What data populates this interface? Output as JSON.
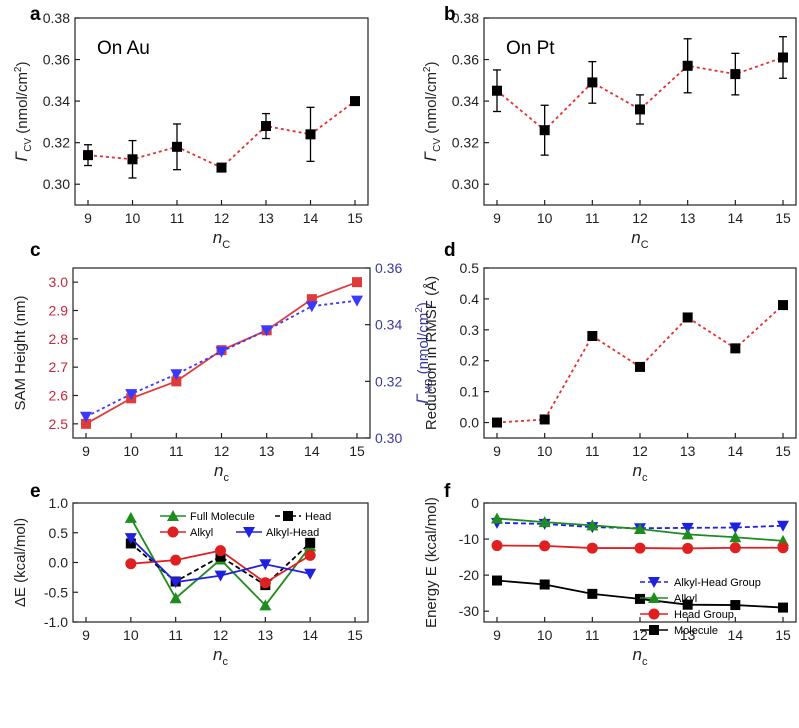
{
  "chart_data": [
    {
      "id": "a",
      "type": "scatter",
      "letter": "a",
      "annotation": "On Au",
      "xlabel_main": "n",
      "xlabel_sub": "C",
      "ylabel_main": "Γ",
      "ylabel_sub": "CV",
      "ylabel_unit": "(nmol/cm",
      "ylabel_sup": "2",
      "ylabel_close": ")",
      "xlim": [
        9,
        15
      ],
      "ylim": [
        0.29,
        0.38
      ],
      "xticks": [
        9,
        10,
        11,
        12,
        13,
        14,
        15
      ],
      "yticks": [
        0.3,
        0.32,
        0.34,
        0.36,
        0.38
      ],
      "ytick_labels": [
        "0.30",
        "0.32",
        "0.34",
        "0.36",
        "0.38"
      ],
      "series": [
        {
          "x": [
            9,
            10,
            11,
            12,
            13,
            14,
            15
          ],
          "y": [
            0.314,
            0.312,
            0.318,
            0.308,
            0.328,
            0.324,
            0.34
          ],
          "yerr": [
            0.005,
            0.009,
            0.011,
            0.0015,
            0.006,
            0.013,
            0.002
          ],
          "color": "#000000",
          "line_color": "#e63030",
          "line": "dotted",
          "marker": "square"
        }
      ]
    },
    {
      "id": "b",
      "type": "scatter",
      "letter": "b",
      "annotation": "On Pt",
      "xlabel_main": "n",
      "xlabel_sub": "C",
      "ylabel_main": "Γ",
      "ylabel_sub": "CV",
      "ylabel_unit": "(nmol/cm",
      "ylabel_sup": "2",
      "ylabel_close": ")",
      "xlim": [
        9,
        15
      ],
      "ylim": [
        0.29,
        0.38
      ],
      "xticks": [
        9,
        10,
        11,
        12,
        13,
        14,
        15
      ],
      "yticks": [
        0.3,
        0.32,
        0.34,
        0.36,
        0.38
      ],
      "ytick_labels": [
        "0.30",
        "0.32",
        "0.34",
        "0.36",
        "0.38"
      ],
      "series": [
        {
          "x": [
            9,
            10,
            11,
            12,
            13,
            14,
            15
          ],
          "y": [
            0.345,
            0.326,
            0.349,
            0.336,
            0.357,
            0.353,
            0.361
          ],
          "yerr": [
            0.01,
            0.012,
            0.01,
            0.007,
            0.013,
            0.01,
            0.01
          ],
          "color": "#000000",
          "line_color": "#e63030",
          "line": "dotted",
          "marker": "square"
        }
      ]
    },
    {
      "id": "c",
      "type": "line",
      "letter": "c",
      "xlabel_main": "n",
      "xlabel_sub": "c",
      "ylabel": "SAM Height (nm)",
      "ylabel2_main": "Γ",
      "ylabel2_sub": "MD",
      "ylabel2_unit": "(nmol/cm",
      "ylabel2_sup": "2",
      "ylabel2_close": ")",
      "xlim": [
        9,
        15
      ],
      "ylim": [
        2.45,
        3.05
      ],
      "ylim2": [
        0.3,
        0.36
      ],
      "xticks": [
        9,
        10,
        11,
        12,
        13,
        14,
        15
      ],
      "yticks": [
        2.5,
        2.6,
        2.7,
        2.8,
        2.9,
        3.0
      ],
      "ytick_labels": [
        "2.5",
        "2.6",
        "2.7",
        "2.8",
        "2.9",
        "3.0"
      ],
      "yticks2": [
        0.3,
        0.32,
        0.34,
        0.36
      ],
      "ytick2_labels": [
        "0.30",
        "0.32",
        "0.34",
        "0.36"
      ],
      "left_axis_color": "#c8283c",
      "right_axis_color": "#3a3aa0",
      "series": [
        {
          "axis": "left",
          "x": [
            9,
            10,
            11,
            12,
            13,
            14,
            15
          ],
          "y": [
            2.5,
            2.59,
            2.65,
            2.76,
            2.83,
            2.94,
            3.0
          ],
          "color": "#e03a3a",
          "line": "solid",
          "marker": "square"
        },
        {
          "axis": "right",
          "x": [
            9,
            10,
            11,
            12,
            13,
            14,
            15
          ],
          "y": [
            0.3075,
            0.3155,
            0.3225,
            0.3305,
            0.338,
            0.3465,
            0.3485
          ],
          "color": "#3a3aff",
          "line": "dotted",
          "marker": "triangle-down"
        }
      ]
    },
    {
      "id": "d",
      "type": "scatter",
      "letter": "d",
      "xlabel_main": "n",
      "xlabel_sub": "c",
      "ylabel": "Reduction in RMSF (Å)",
      "xlim": [
        9,
        15
      ],
      "ylim": [
        -0.05,
        0.5
      ],
      "xticks": [
        9,
        10,
        11,
        12,
        13,
        14,
        15
      ],
      "yticks": [
        0.0,
        0.1,
        0.2,
        0.3,
        0.4,
        0.5
      ],
      "ytick_labels": [
        "0.0",
        "0.1",
        "0.2",
        "0.3",
        "0.4",
        "0.5"
      ],
      "series": [
        {
          "x": [
            9,
            10,
            11,
            12,
            13,
            14,
            15
          ],
          "y": [
            0.0,
            0.01,
            0.28,
            0.18,
            0.34,
            0.24,
            0.38
          ],
          "color": "#000000",
          "line_color": "#e63030",
          "line": "dotted",
          "marker": "square"
        }
      ]
    },
    {
      "id": "e",
      "type": "line",
      "letter": "e",
      "xlabel_main": "n",
      "xlabel_sub": "c",
      "ylabel": "ΔE (kcal/mol)",
      "xlim": [
        9,
        15
      ],
      "ylim": [
        -1.0,
        1.0
      ],
      "xticks": [
        9,
        10,
        11,
        12,
        13,
        14,
        15
      ],
      "yticks": [
        -1.0,
        -0.5,
        0.0,
        0.5,
        1.0
      ],
      "ytick_labels": [
        "-1.0",
        "-0.5",
        "0.0",
        "0.5",
        "1.0"
      ],
      "legend": "top-center",
      "series": [
        {
          "name": "Full Molecule",
          "x": [
            10,
            11,
            12,
            13,
            14
          ],
          "y": [
            0.75,
            -0.6,
            0.05,
            -0.72,
            0.27
          ],
          "color": "#1e8c1e",
          "line": "solid",
          "marker": "triangle-up"
        },
        {
          "name": "Head",
          "x": [
            10,
            11,
            12,
            13,
            14
          ],
          "y": [
            0.32,
            -0.32,
            0.1,
            -0.38,
            0.33
          ],
          "color": "#000000",
          "line": "dashed",
          "marker": "square"
        },
        {
          "name": "Alkyl",
          "x": [
            10,
            11,
            12,
            13,
            14
          ],
          "y": [
            -0.02,
            0.04,
            0.2,
            -0.34,
            0.12
          ],
          "color": "#e02020",
          "line": "solid",
          "marker": "circle"
        },
        {
          "name": "Alkyl-Head",
          "x": [
            10,
            11,
            12,
            13,
            14
          ],
          "y": [
            0.41,
            -0.33,
            -0.22,
            -0.03,
            -0.19
          ],
          "color": "#2020e0",
          "line": "solid",
          "marker": "triangle-down"
        }
      ]
    },
    {
      "id": "f",
      "type": "line",
      "letter": "f",
      "xlabel_main": "n",
      "xlabel_sub": "c",
      "ylabel": "Energy E (kcal/mol)",
      "xlim": [
        9,
        15
      ],
      "ylim": [
        -33,
        0
      ],
      "xticks": [
        9,
        10,
        11,
        12,
        13,
        14,
        15
      ],
      "yticks": [
        -30,
        -20,
        -10,
        0
      ],
      "ytick_labels": [
        "-30",
        "-20",
        "-10",
        "0"
      ],
      "legend": "lower-right",
      "series": [
        {
          "name": "Alkyl-Head Group",
          "x": [
            9,
            10,
            11,
            12,
            13,
            14,
            15
          ],
          "y": [
            -5.5,
            -5.8,
            -6.7,
            -7.0,
            -6.9,
            -6.8,
            -6.3
          ],
          "color": "#2020e0",
          "line": "dashed",
          "marker": "triangle-down"
        },
        {
          "name": "Alkyl",
          "x": [
            9,
            10,
            11,
            12,
            13,
            14,
            15
          ],
          "y": [
            -4.3,
            -5.3,
            -6.2,
            -7.2,
            -8.7,
            -9.5,
            -10.5
          ],
          "color": "#1e8c1e",
          "line": "solid",
          "marker": "triangle-up"
        },
        {
          "name": "Head Group",
          "x": [
            9,
            10,
            11,
            12,
            13,
            14,
            15
          ],
          "y": [
            -11.8,
            -11.9,
            -12.5,
            -12.5,
            -12.6,
            -12.4,
            -12.4
          ],
          "color": "#e02020",
          "line": "solid",
          "marker": "circle"
        },
        {
          "name": "Molecule",
          "x": [
            9,
            10,
            11,
            12,
            13,
            14,
            15
          ],
          "y": [
            -21.5,
            -22.6,
            -25.2,
            -26.6,
            -28.2,
            -28.3,
            -29.0
          ],
          "color": "#000000",
          "line": "solid",
          "marker": "square"
        }
      ]
    }
  ]
}
